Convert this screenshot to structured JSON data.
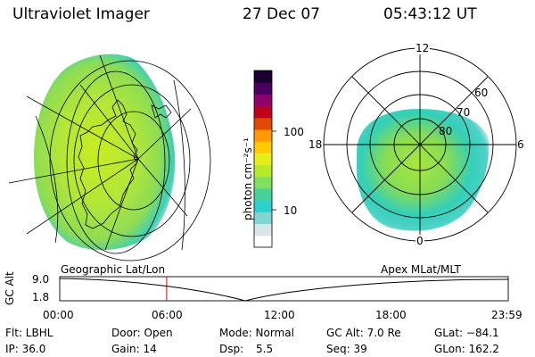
{
  "header": {
    "title": "Ultraviolet Imager",
    "date": "27 Dec 07",
    "time": "05:43:12 UT"
  },
  "colorbar": {
    "unit_label": "photon cm⁻²s⁻¹",
    "ticks": [
      {
        "label": "100",
        "value": 100
      },
      {
        "label": "10",
        "value": 10
      }
    ],
    "colors": [
      "#ffffff",
      "#d9e6e9",
      "#7fd6d2",
      "#2ecfcf",
      "#46d19a",
      "#7fe060",
      "#b8ea2c",
      "#e6ee1a",
      "#ffcc00",
      "#ff9a00",
      "#e04a00",
      "#c0001a",
      "#90006a",
      "#4a0060",
      "#1a0030"
    ]
  },
  "maps": {
    "left_label": "Geographic Lat/Lon",
    "right_label": "Apex MLat/MLT"
  },
  "polar_plot": {
    "mlt_labels": {
      "top": "12",
      "left": "18",
      "right": "6",
      "bottom": "0"
    },
    "lat_labels": [
      "60",
      "70",
      "80"
    ]
  },
  "timeline": {
    "y_label": "GC Alt",
    "y_ticks": [
      "9.0",
      "1.8"
    ],
    "x_ticks": [
      "00:00",
      "06:00",
      "12:00",
      "18:00",
      "23:59"
    ],
    "marker_time": "05:43",
    "colors": {
      "marker": "#e00000",
      "curve": "#000000"
    }
  },
  "info": {
    "flt": "Flt: LBHL",
    "door": "Door: Open",
    "mode": "Mode: Normal",
    "gc_alt": "GC Alt: 7.0 Re",
    "glat": "GLat: −84.1",
    "ip": "IP: 36.0",
    "gain": "Gain: 14",
    "dsp_label": "Dsp:",
    "dsp_value": "5.5",
    "seq": "Seq: 39",
    "glon": "GLon: 162.2"
  }
}
